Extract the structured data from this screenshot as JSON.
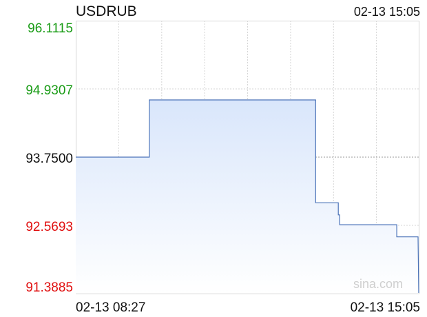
{
  "symbol": "USDRUB",
  "timestamp": "02-13 15:05",
  "watermark": "sina.com",
  "colors": {
    "up": "#1a9c16",
    "down": "#e01010",
    "neutral": "#111111",
    "line": "#4a72b8",
    "fill_top": "#d9e6fb",
    "fill_bottom": "#ffffff",
    "grid": "#d6d6d6",
    "watermark": "#cfcfcf"
  },
  "chart_data": {
    "type": "area",
    "title": "USDRUB",
    "reference_value": 93.75,
    "ylim": [
      91.3885,
      96.1115
    ],
    "y_ticks": [
      {
        "label": "96.1115",
        "value": 96.1115,
        "tone": "up"
      },
      {
        "label": "94.9307",
        "value": 94.9307,
        "tone": "up"
      },
      {
        "label": "93.7500",
        "value": 93.75,
        "tone": "neutral"
      },
      {
        "label": "92.5693",
        "value": 92.5693,
        "tone": "down"
      },
      {
        "label": "91.3885",
        "value": 91.3885,
        "tone": "down"
      }
    ],
    "x_labels": [
      "02-13 08:27",
      "02-13 15:05"
    ],
    "x_range": [
      0,
      100
    ],
    "grid": true,
    "series": [
      {
        "values": [
          {
            "x": 0,
            "y": 93.75
          },
          {
            "x": 21.4,
            "y": 93.75
          },
          {
            "x": 21.4,
            "y": 94.74
          },
          {
            "x": 69.8,
            "y": 94.74
          },
          {
            "x": 69.8,
            "y": 92.96
          },
          {
            "x": 76.4,
            "y": 92.96
          },
          {
            "x": 76.4,
            "y": 92.75
          },
          {
            "x": 76.8,
            "y": 92.75
          },
          {
            "x": 76.8,
            "y": 92.58
          },
          {
            "x": 93.4,
            "y": 92.58
          },
          {
            "x": 93.4,
            "y": 92.37
          },
          {
            "x": 99.6,
            "y": 92.37
          },
          {
            "x": 99.8,
            "y": 91.4
          }
        ]
      }
    ]
  }
}
